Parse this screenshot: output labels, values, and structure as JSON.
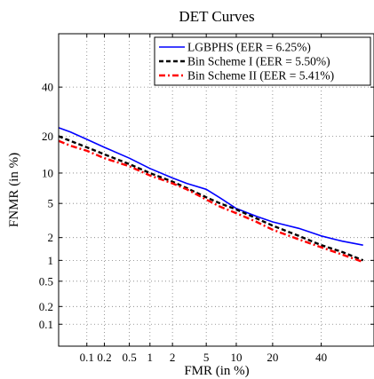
{
  "chart_data": {
    "type": "line",
    "title": "DET Curves",
    "xlabel": "FMR (in %)",
    "ylabel": "FNMR (in %)",
    "xscale": "normal-deviate (probit)",
    "yscale": "normal-deviate (probit)",
    "xlim": [
      0.03,
      65
    ],
    "ylim": [
      0.04,
      65
    ],
    "grid": true,
    "legend_position": "top-right",
    "x_ticks": [
      0.1,
      0.2,
      0.5,
      1,
      2,
      5,
      10,
      20,
      40
    ],
    "x_tick_labels": [
      "0.1",
      "0.2",
      "0.5",
      "1",
      "2",
      "5",
      "10",
      "20",
      "40"
    ],
    "y_ticks": [
      0.1,
      0.2,
      0.5,
      1,
      2,
      5,
      10,
      20,
      40
    ],
    "y_tick_labels": [
      "0.1",
      "0.2",
      "0.5",
      "1",
      "2",
      "5",
      "10",
      "20",
      "40"
    ],
    "series": [
      {
        "name": "LGBPHS (EER = 6.25%)",
        "color": "#0000ff",
        "style": "solid",
        "x": [
          0.03,
          0.05,
          0.1,
          0.2,
          0.5,
          1,
          2,
          3,
          5,
          7,
          10,
          15,
          20,
          30,
          40,
          50,
          60
        ],
        "y": [
          23,
          21.5,
          19,
          16.5,
          13.5,
          11,
          9,
          8,
          7,
          5.7,
          4.4,
          3.6,
          3.1,
          2.6,
          2.1,
          1.8,
          1.6
        ]
      },
      {
        "name": "Bin Scheme I (EER = 5.50%)",
        "color": "#000000",
        "style": "dashed",
        "x": [
          0.03,
          0.05,
          0.1,
          0.2,
          0.5,
          1,
          2,
          3,
          5,
          7,
          10,
          15,
          20,
          30,
          40,
          50,
          60
        ],
        "y": [
          20,
          18.5,
          16.5,
          14.5,
          12,
          10,
          8.3,
          7.2,
          5.8,
          5,
          4.3,
          3.4,
          2.8,
          2.1,
          1.6,
          1.3,
          1.0
        ]
      },
      {
        "name": "Bin Scheme II (EER = 5.41%)",
        "color": "#ff0000",
        "style": "dash-dot",
        "x": [
          0.03,
          0.05,
          0.1,
          0.2,
          0.5,
          1,
          2,
          3,
          5,
          7,
          10,
          15,
          20,
          30,
          40,
          50,
          60
        ],
        "y": [
          18.5,
          17,
          15.5,
          13.5,
          11.5,
          9.5,
          8,
          7,
          5.5,
          4.6,
          3.9,
          3.1,
          2.5,
          1.9,
          1.5,
          1.2,
          0.95
        ]
      }
    ]
  }
}
